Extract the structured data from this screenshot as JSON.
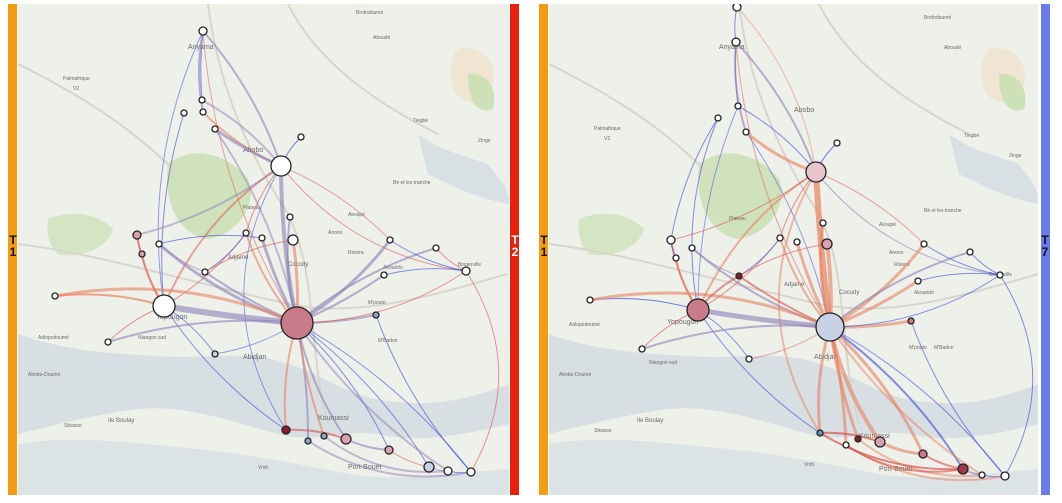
{
  "colors": {
    "orange": "#f39c12",
    "red": "#e8200c",
    "blue": "#6b7cf0",
    "water": "#d4dde2",
    "land": "#eef0ea",
    "park": "#c9dfb3"
  },
  "panels": [
    {
      "left_bar": {
        "label_a": "T",
        "label_b": "1"
      },
      "right_bar": {
        "label_a": "T",
        "label_b": "2"
      }
    },
    {
      "left_bar": {
        "label_a": "T",
        "label_b": "1"
      },
      "right_bar": {
        "label_a": "T",
        "label_b": "7"
      }
    }
  ],
  "map_labels": {
    "abobo": "Abobo",
    "anyama": "Anyama",
    "yopougon": "Yopougon",
    "bingerville": "Bingerville",
    "koumassi": "Koumassi",
    "port_bouet": "Port-Bouët",
    "abidjan": "Abidjan",
    "ile_boulay": "Ile Boulay",
    "niangon_sud": "Niangon sud",
    "abobo_doume": "Abobo-Doumé",
    "palmafrique": "Palmafrique",
    "v2": "V2",
    "tiegbe": "Tiegbé",
    "zinge": "Zinge",
    "be_tranche": "Bè et les tranche",
    "adjame": "Adjamé",
    "attingue": "Attingué",
    "cocody": "Cocody",
    "plateau": "Plateau",
    "vridi": "Vridi",
    "mbadon": "M'Badon",
    "sikasso": "Sikasso",
    "brofodoume": "Brofodoumé",
    "aboude": "Aboudé",
    "akoupe": "Akoupé",
    "anono": "Anono",
    "mpouto": "M'pouto",
    "akouedo": "Akouédo",
    "niangon_adjame": "Niangon Adjamé",
    "yoe": "Yoé",
    "ajame_nord": "Abobo Nord",
    "riviera": "Riviera",
    "mossikro": "Mossikro",
    "adiopodoume": "Adiopodoumé"
  }
}
